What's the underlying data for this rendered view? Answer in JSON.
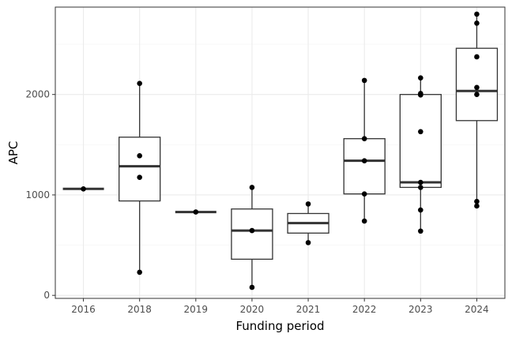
{
  "chart_data": {
    "type": "box",
    "xlabel": "Funding period",
    "ylabel": "APC",
    "ylim": [
      -30,
      2870
    ],
    "y_ticks": [
      0,
      1000,
      2000
    ],
    "y_minor_ticks": [
      500,
      1500,
      2500
    ],
    "grid": true,
    "categories": [
      "2016",
      "2018",
      "2019",
      "2020",
      "2021",
      "2022",
      "2023",
      "2024"
    ],
    "boxes": [
      {
        "category": "2016",
        "min": 1060,
        "q1": 1060,
        "median": 1060,
        "q3": 1060,
        "max": 1060
      },
      {
        "category": "2018",
        "min": 230,
        "q1": 940,
        "median": 1285,
        "q3": 1575,
        "max": 2110
      },
      {
        "category": "2019",
        "min": 830,
        "q1": 830,
        "median": 830,
        "q3": 830,
        "max": 830
      },
      {
        "category": "2020",
        "min": 80,
        "q1": 360,
        "median": 645,
        "q3": 860,
        "max": 1075
      },
      {
        "category": "2021",
        "min": 525,
        "q1": 620,
        "median": 720,
        "q3": 815,
        "max": 910
      },
      {
        "category": "2022",
        "min": 740,
        "q1": 1010,
        "median": 1340,
        "q3": 1560,
        "max": 2140
      },
      {
        "category": "2023",
        "min": 640,
        "q1": 1075,
        "median": 1125,
        "q3": 2000,
        "max": 2165
      },
      {
        "category": "2024",
        "min": 890,
        "q1": 1740,
        "median": 2035,
        "q3": 2460,
        "max": 2800
      }
    ],
    "points": [
      {
        "category": "2016",
        "values": [
          1060
        ]
      },
      {
        "category": "2018",
        "values": [
          2110,
          1390,
          1175,
          230
        ]
      },
      {
        "category": "2019",
        "values": [
          830
        ]
      },
      {
        "category": "2020",
        "values": [
          1075,
          645,
          80
        ]
      },
      {
        "category": "2021",
        "values": [
          910,
          525
        ]
      },
      {
        "category": "2022",
        "values": [
          2140,
          1560,
          1340,
          1010,
          740
        ]
      },
      {
        "category": "2023",
        "values": [
          2165,
          2010,
          1995,
          1630,
          1125,
          1075,
          850,
          640
        ]
      },
      {
        "category": "2024",
        "values": [
          2800,
          2710,
          2375,
          2070,
          2000,
          935,
          890
        ]
      }
    ]
  }
}
